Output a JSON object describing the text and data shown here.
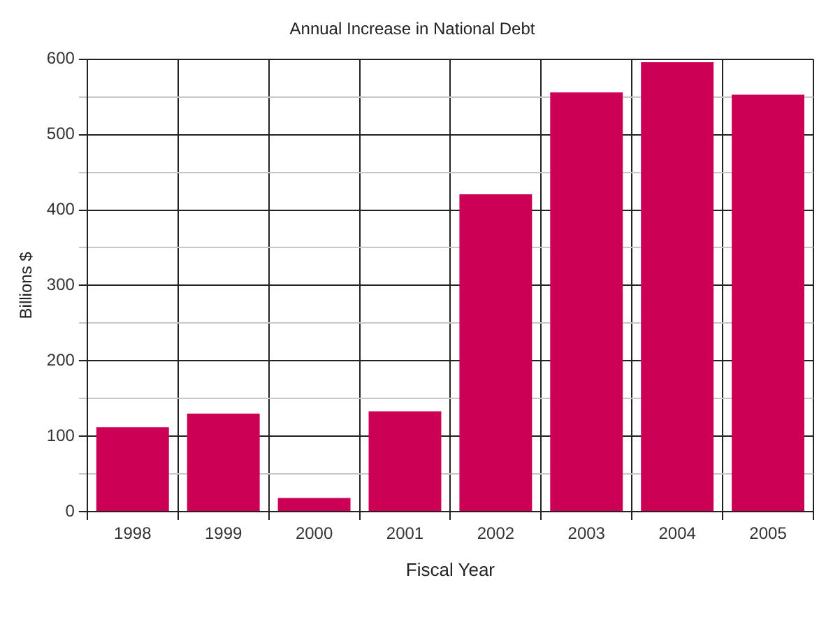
{
  "chart_data": {
    "type": "bar",
    "title": "Annual Increase in National Debt",
    "xlabel": "Fiscal Year",
    "ylabel": "Billions $",
    "categories": [
      "1998",
      "1999",
      "2000",
      "2001",
      "2002",
      "2003",
      "2004",
      "2005"
    ],
    "values": [
      112,
      130,
      18,
      133,
      421,
      556,
      596,
      553
    ],
    "color": "#cc0055",
    "ylim": [
      0,
      600
    ],
    "yticks": [
      0,
      {
        "value": 50,
        "label": null
      },
      100,
      {
        "value": 150,
        "label": null
      },
      200,
      {
        "value": 250,
        "label": null
      },
      300,
      {
        "value": 350,
        "label": null
      },
      400,
      {
        "value": 450,
        "label": null
      },
      500,
      {
        "value": 550,
        "label": null
      },
      600
    ],
    "grid": true,
    "legend": false
  }
}
